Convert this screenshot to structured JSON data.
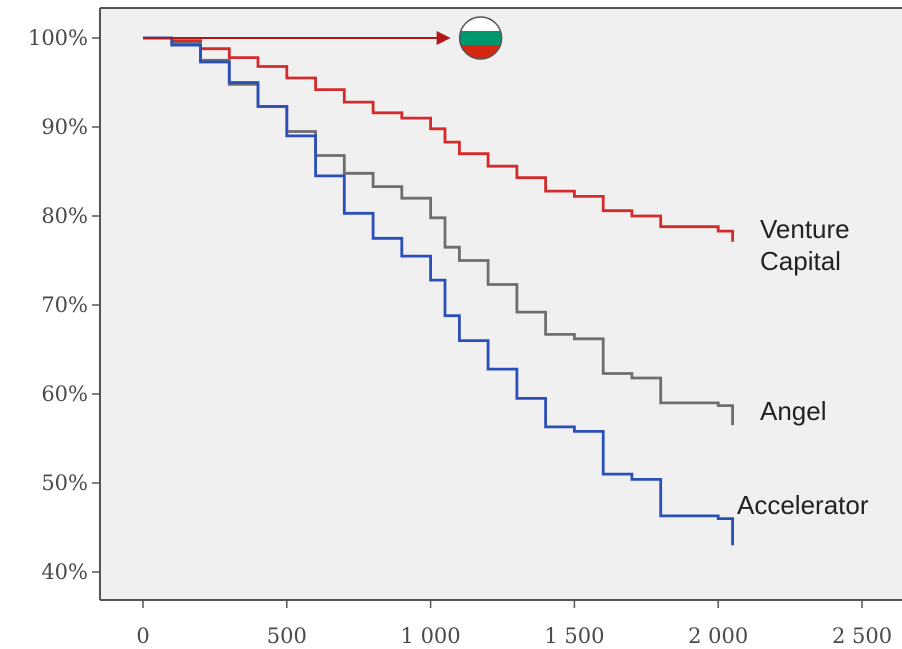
{
  "chart_data": {
    "type": "line",
    "title": "",
    "xlabel": "",
    "ylabel": "",
    "xlim": [
      0,
      2500
    ],
    "ylim": [
      40,
      100
    ],
    "x_ticks": [
      0,
      500,
      1000,
      1500,
      2000,
      2500
    ],
    "x_tick_labels": [
      "0",
      "500",
      "1 000",
      "1 500",
      "2 000",
      "2 500"
    ],
    "y_ticks": [
      40,
      50,
      60,
      70,
      80,
      90,
      100
    ],
    "y_tick_labels": [
      "40%",
      "50%",
      "60%",
      "70%",
      "80%",
      "90%",
      "100%"
    ],
    "grid": false,
    "legend": "direct labels at line ends",
    "background_color": "#f0f0f0",
    "annotation": {
      "type": "arrow",
      "from": [
        0,
        100
      ],
      "to": [
        1160,
        100
      ],
      "color": "#b01818",
      "icon": "bulgaria-flag-icon"
    },
    "series": [
      {
        "label_lines": [
          "Venture",
          "Capital"
        ],
        "color": "#d42a2a",
        "x": [
          0,
          100,
          200,
          300,
          400,
          500,
          600,
          700,
          800,
          900,
          1000,
          1050,
          1100,
          1200,
          1300,
          1400,
          1500,
          1600,
          1700,
          1800,
          2000,
          2050
        ],
        "y": [
          100,
          99.7,
          98.8,
          97.8,
          96.8,
          95.5,
          94.2,
          92.8,
          91.6,
          91,
          89.8,
          88.3,
          87,
          85.6,
          84.3,
          82.8,
          82.2,
          80.6,
          80,
          78.8,
          78.3,
          77.1
        ]
      },
      {
        "label_lines": [
          "Angel"
        ],
        "color": "#6e6e6e",
        "x": [
          0,
          100,
          200,
          300,
          400,
          500,
          600,
          700,
          800,
          900,
          1000,
          1050,
          1100,
          1200,
          1300,
          1400,
          1500,
          1600,
          1700,
          1800,
          2000,
          2050
        ],
        "y": [
          100,
          99.4,
          97.5,
          94.8,
          92.3,
          89.5,
          86.8,
          84.8,
          83.3,
          82,
          79.8,
          76.5,
          75,
          72.3,
          69.2,
          66.7,
          66.2,
          62.3,
          61.8,
          59,
          58.7,
          56.5
        ]
      },
      {
        "label_lines": [
          "Accelerator"
        ],
        "color": "#2a4fb8",
        "x": [
          0,
          100,
          200,
          300,
          400,
          500,
          600,
          700,
          800,
          900,
          1000,
          1050,
          1100,
          1200,
          1300,
          1400,
          1500,
          1600,
          1700,
          1800,
          2000,
          2050
        ],
        "y": [
          100,
          99.2,
          97.3,
          95,
          92.3,
          89,
          84.5,
          80.3,
          77.5,
          75.5,
          72.8,
          68.8,
          66,
          62.8,
          59.5,
          56.3,
          55.8,
          51,
          50.4,
          46.3,
          46,
          43
        ]
      }
    ]
  }
}
